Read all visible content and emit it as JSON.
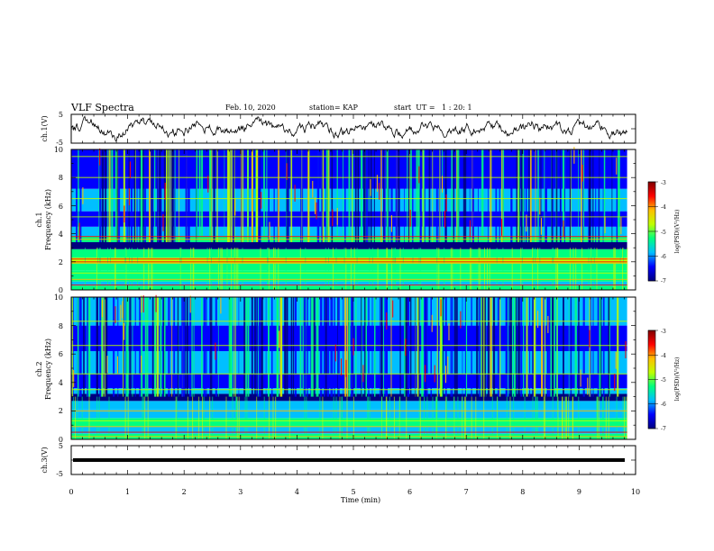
{
  "header": {
    "title": "VLF Spectra",
    "date": "Feb. 10, 2020",
    "station": "station= KAP",
    "start_ut": "start  UT =   1 : 20: 1"
  },
  "chart_data": [
    {
      "id": "ch1-waveform",
      "type": "line",
      "ylabel": "ch.1(V)",
      "ylim": [
        -5,
        5
      ],
      "yticks": [
        "5",
        "-5"
      ],
      "xlim": [
        0,
        10
      ],
      "trace_end_min": 9.85,
      "line_color": "#000000"
    },
    {
      "id": "ch1-spectrogram",
      "type": "heatmap",
      "ylabel_top": "ch.1",
      "ylabel": "Frequency (kHz)",
      "ylim": [
        0,
        10
      ],
      "yticks": [
        "0",
        "2",
        "4",
        "6",
        "8",
        "10"
      ],
      "xlim": [
        0,
        10
      ],
      "data_end_min": 9.85,
      "colorbar": {
        "label": "log(PSD)(V²/Hz)",
        "ticks": [
          "-3",
          "-4",
          "-5",
          "-6",
          "-7"
        ],
        "range": [
          -7,
          -3
        ],
        "colors": [
          "#00007f",
          "#0000ff",
          "#00bfff",
          "#00ff7f",
          "#bfff00",
          "#ffbf00",
          "#ff0000",
          "#7f0000"
        ]
      }
    },
    {
      "id": "ch2-spectrogram",
      "type": "heatmap",
      "ylabel_top": "ch.2",
      "ylabel": "Frequency (kHz)",
      "ylim": [
        0,
        10
      ],
      "yticks": [
        "0",
        "2",
        "4",
        "6",
        "8",
        "10"
      ],
      "xlim": [
        0,
        10
      ],
      "data_end_min": 9.85,
      "colorbar": {
        "label": "log(PSD)(V²/Hz)",
        "ticks": [
          "-3",
          "-4",
          "-5",
          "-6",
          "-7"
        ],
        "range": [
          -7,
          -3
        ],
        "colors": [
          "#00007f",
          "#0000ff",
          "#00bfff",
          "#00ff7f",
          "#bfff00",
          "#ffbf00",
          "#ff0000",
          "#7f0000"
        ]
      }
    },
    {
      "id": "ch3-waveform",
      "type": "line",
      "ylabel": "ch.3(V)",
      "ylim": [
        -5,
        5
      ],
      "yticks": [
        "5",
        "-5"
      ],
      "xlim": [
        0,
        10
      ],
      "constant_value": 0,
      "line_color": "#000000"
    }
  ],
  "xaxis": {
    "label": "Time (min)",
    "ticks": [
      "0",
      "1",
      "2",
      "3",
      "4",
      "5",
      "6",
      "7",
      "8",
      "9",
      "10"
    ]
  }
}
